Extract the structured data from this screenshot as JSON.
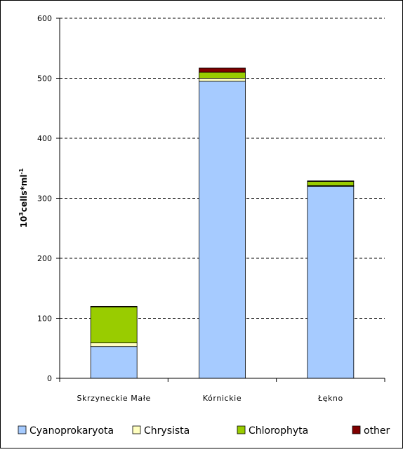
{
  "chart_data": {
    "type": "bar",
    "stacked": true,
    "categories": [
      "Skrzyneckie Małe",
      "Kórnickie",
      "Łękno"
    ],
    "series": [
      {
        "name": "Cyanoprokaryota",
        "values": [
          53,
          495,
          320
        ],
        "color": "#a6cbff"
      },
      {
        "name": "Chrysista",
        "values": [
          6,
          5,
          1
        ],
        "color": "#ffffc0"
      },
      {
        "name": "Chlorophyta",
        "values": [
          60,
          10,
          7
        ],
        "color": "#99cc00"
      },
      {
        "name": "other",
        "values": [
          1,
          7,
          1
        ],
        "color": "#800000"
      }
    ],
    "ylabel_base": "10",
    "ylabel_exp": "3",
    "ylabel_mid": "cells*ml",
    "ylabel_exp2": "-1",
    "ylim": [
      0,
      600
    ],
    "yticks": [
      0,
      100,
      200,
      300,
      400,
      500,
      600
    ],
    "grid": true,
    "legend_position": "bottom"
  }
}
